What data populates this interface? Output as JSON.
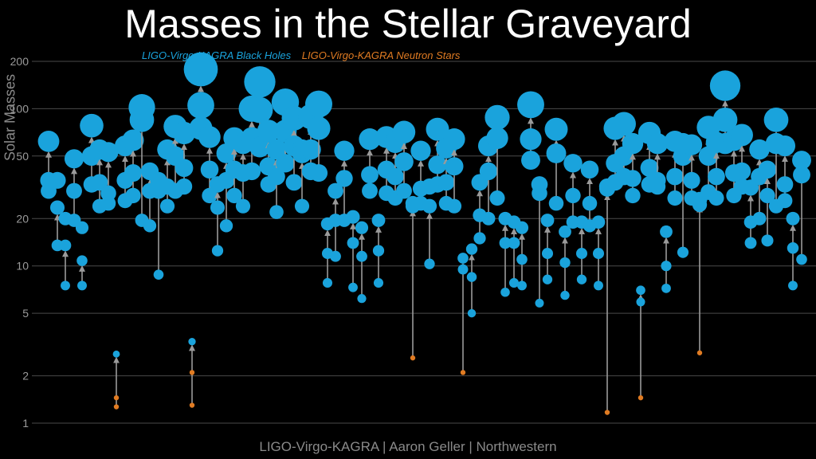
{
  "chart_data": {
    "type": "scatter",
    "title": "Masses in the Stellar Graveyard",
    "ylabel": "Solar Masses",
    "credit": "LIGO-Virgo-KAGRA | Aaron Geller | Northwestern",
    "yscale": "log",
    "ylim": [
      1,
      200
    ],
    "yticks": [
      1,
      2,
      5,
      10,
      20,
      50,
      100,
      200
    ],
    "ytick_labels": [
      "1",
      "2",
      "5",
      "10",
      "20",
      "50",
      "100",
      "200"
    ],
    "grid": true,
    "legend": {
      "placement": "top-left",
      "entries": [
        {
          "label": "LIGO-Virgo-KAGRA Black Holes",
          "color": "#1aa3dc"
        },
        {
          "label": "LIGO-Virgo-KAGRA Neutron Stars",
          "color": "#e07b22"
        }
      ]
    },
    "colors": {
      "black_hole": "#1aa3dc",
      "neutron_star": "#e07b22",
      "arrow": "#9a9a9a",
      "grid": "#4a4a4a"
    },
    "note": "Each merger: two components (m1, m2) with an arrow to the remnant mass (rem). Component kind: b = black hole, n = neutron star.",
    "events": [
      {
        "x": 61,
        "m1": 35,
        "m2": 30,
        "rem": 62,
        "k1": "b",
        "k2": "b"
      },
      {
        "x": 72,
        "m1": 35,
        "m2": 13.5,
        "rem": 23.5,
        "k1": "b",
        "k2": "b"
      },
      {
        "x": 82,
        "m1": 20,
        "m2": 7.5,
        "rem": 13.5,
        "k1": "b",
        "k2": "b"
      },
      {
        "x": 93,
        "m1": 30,
        "m2": 19.5,
        "rem": 48,
        "k1": "b",
        "k2": "b"
      },
      {
        "x": 103,
        "m1": 17.5,
        "m2": 7.5,
        "rem": 10.8,
        "k1": "b",
        "k2": "b"
      },
      {
        "x": 115,
        "m1": 50,
        "m2": 33,
        "rem": 78,
        "k1": "b",
        "k2": "b"
      },
      {
        "x": 125,
        "m1": 34,
        "m2": 24,
        "rem": 55,
        "k1": "b",
        "k2": "b"
      },
      {
        "x": 136,
        "m1": 29,
        "m2": 25,
        "rem": 53,
        "k1": "b",
        "k2": "b"
      },
      {
        "x": 146,
        "m1": 1.45,
        "m2": 1.27,
        "rem": 2.75,
        "k1": "n",
        "k2": "n"
      },
      {
        "x": 157,
        "m1": 35,
        "m2": 26,
        "rem": 58,
        "k1": "b",
        "k2": "b"
      },
      {
        "x": 167,
        "m1": 39,
        "m2": 28,
        "rem": 63,
        "k1": "b",
        "k2": "b"
      },
      {
        "x": 178,
        "m1": 85,
        "m2": 19.5,
        "rem": 102,
        "k1": "b",
        "k2": "b"
      },
      {
        "x": 188,
        "m1": 30,
        "m2": 18,
        "rem": 40,
        "k1": "b",
        "k2": "b"
      },
      {
        "x": 199,
        "m1": 30,
        "m2": 8.8,
        "rem": 35,
        "k1": "b",
        "k2": "b"
      },
      {
        "x": 210,
        "m1": 32,
        "m2": 24,
        "rem": 55,
        "k1": "b",
        "k2": "b"
      },
      {
        "x": 220,
        "m1": 50,
        "m2": 30,
        "rem": 77,
        "k1": "b",
        "k2": "b"
      },
      {
        "x": 231,
        "m1": 42,
        "m2": 32,
        "rem": 70,
        "k1": "b",
        "k2": "b"
      },
      {
        "x": 241,
        "m1": 2.1,
        "m2": 1.3,
        "rem": 3.3,
        "k1": "n",
        "k2": "n"
      },
      {
        "x": 252,
        "m1": 105,
        "m2": 75,
        "rem": 178,
        "k1": "b",
        "k2": "b"
      },
      {
        "x": 263,
        "m1": 41,
        "m2": 28,
        "rem": 66,
        "k1": "b",
        "k2": "b"
      },
      {
        "x": 273,
        "m1": 23.5,
        "m2": 12.5,
        "rem": 33,
        "k1": "b",
        "k2": "b"
      },
      {
        "x": 284,
        "m1": 35,
        "m2": 18,
        "rem": 52,
        "k1": "b",
        "k2": "b"
      },
      {
        "x": 294,
        "m1": 41,
        "m2": 28,
        "rem": 65,
        "k1": "b",
        "k2": "b"
      },
      {
        "x": 305,
        "m1": 39,
        "m2": 24,
        "rem": 60,
        "k1": "b",
        "k2": "b"
      },
      {
        "x": 316,
        "m1": 65,
        "m2": 40,
        "rem": 100,
        "k1": "b",
        "k2": "b"
      },
      {
        "x": 326,
        "m1": 98,
        "m2": 57,
        "rem": 148,
        "k1": "b",
        "k2": "b"
      },
      {
        "x": 337,
        "m1": 43,
        "m2": 33,
        "rem": 72,
        "k1": "b",
        "k2": "b"
      },
      {
        "x": 347,
        "m1": 37,
        "m2": 22,
        "rem": 55,
        "k1": "b",
        "k2": "b"
      },
      {
        "x": 358,
        "m1": 72,
        "m2": 45,
        "rem": 110,
        "k1": "b",
        "k2": "b"
      },
      {
        "x": 369,
        "m1": 58,
        "m2": 34,
        "rem": 87,
        "k1": "b",
        "k2": "b"
      },
      {
        "x": 379,
        "m1": 55,
        "m2": 24,
        "rem": 52,
        "k1": "b",
        "k2": "b"
      },
      {
        "x": 390,
        "m1": 55,
        "m2": 40,
        "rem": 89,
        "k1": "b",
        "k2": "b"
      },
      {
        "x": 400,
        "m1": 75,
        "m2": 39,
        "rem": 107,
        "k1": "b",
        "k2": "b"
      },
      {
        "x": 411,
        "m1": 12,
        "m2": 7.8,
        "rem": 18.5,
        "k1": "b",
        "k2": "b"
      },
      {
        "x": 421,
        "m1": 19.5,
        "m2": 11.5,
        "rem": 30,
        "k1": "b",
        "k2": "b"
      },
      {
        "x": 432,
        "m1": 36,
        "m2": 19.5,
        "rem": 54,
        "k1": "b",
        "k2": "b"
      },
      {
        "x": 443,
        "m1": 14,
        "m2": 7.3,
        "rem": 20.5,
        "k1": "b",
        "k2": "b"
      },
      {
        "x": 454,
        "m1": 11.5,
        "m2": 6.2,
        "rem": 17.5,
        "k1": "b",
        "k2": "b"
      },
      {
        "x": 464,
        "m1": 38,
        "m2": 30,
        "rem": 64,
        "k1": "b",
        "k2": "b"
      },
      {
        "x": 475,
        "m1": 12.5,
        "m2": 7.8,
        "rem": 19.5,
        "k1": "b",
        "k2": "b"
      },
      {
        "x": 485,
        "m1": 41,
        "m2": 29,
        "rem": 66,
        "k1": "b",
        "k2": "b"
      },
      {
        "x": 496,
        "m1": 37,
        "m2": 27,
        "rem": 61,
        "k1": "b",
        "k2": "b"
      },
      {
        "x": 507,
        "m1": 46,
        "m2": 30,
        "rem": 71,
        "k1": "b",
        "k2": "b"
      },
      {
        "x": 518,
        "m1": 24,
        "m2": 2.6,
        "rem": 25,
        "k1": "b",
        "k2": "n"
      },
      {
        "x": 528,
        "m1": 31,
        "m2": 25,
        "rem": 54,
        "k1": "b",
        "k2": "b"
      },
      {
        "x": 539,
        "m1": 32,
        "m2": 10.3,
        "rem": 24,
        "k1": "b",
        "k2": "b"
      },
      {
        "x": 549,
        "m1": 44,
        "m2": 33,
        "rem": 74,
        "k1": "b",
        "k2": "b"
      },
      {
        "x": 560,
        "m1": 34,
        "m2": 25,
        "rem": 56,
        "k1": "b",
        "k2": "b"
      },
      {
        "x": 570,
        "m1": 43,
        "m2": 24,
        "rem": 64,
        "k1": "b",
        "k2": "b"
      },
      {
        "x": 581,
        "m1": 9.5,
        "m2": 2.1,
        "rem": 11.2,
        "k1": "b",
        "k2": "n"
      },
      {
        "x": 592,
        "m1": 8.5,
        "m2": 5.0,
        "rem": 12.8,
        "k1": "b",
        "k2": "b"
      },
      {
        "x": 602,
        "m1": 21,
        "m2": 15,
        "rem": 34,
        "k1": "b",
        "k2": "b"
      },
      {
        "x": 613,
        "m1": 40,
        "m2": 20,
        "rem": 58,
        "k1": "b",
        "k2": "b"
      },
      {
        "x": 624,
        "m1": 65,
        "m2": 27,
        "rem": 88,
        "k1": "b",
        "k2": "b"
      },
      {
        "x": 634,
        "m1": 14,
        "m2": 6.8,
        "rem": 20,
        "k1": "b",
        "k2": "b"
      },
      {
        "x": 645,
        "m1": 14,
        "m2": 7.8,
        "rem": 19,
        "k1": "b",
        "k2": "b"
      },
      {
        "x": 655,
        "m1": 11,
        "m2": 7.5,
        "rem": 17.5,
        "k1": "b",
        "k2": "b"
      },
      {
        "x": 666,
        "m1": 64,
        "m2": 47,
        "rem": 106,
        "k1": "b",
        "k2": "b"
      },
      {
        "x": 677,
        "m1": 29,
        "m2": 5.8,
        "rem": 33,
        "k1": "b",
        "k2": "b"
      },
      {
        "x": 687,
        "m1": 12,
        "m2": 8.2,
        "rem": 19.5,
        "k1": "b",
        "k2": "b"
      },
      {
        "x": 698,
        "m1": 52,
        "m2": 25,
        "rem": 74,
        "k1": "b",
        "k2": "b"
      },
      {
        "x": 709,
        "m1": 10.5,
        "m2": 6.5,
        "rem": 16.5,
        "k1": "b",
        "k2": "b"
      },
      {
        "x": 719,
        "m1": 28,
        "m2": 19,
        "rem": 45,
        "k1": "b",
        "k2": "b"
      },
      {
        "x": 730,
        "m1": 12,
        "m2": 8.2,
        "rem": 19,
        "k1": "b",
        "k2": "b"
      },
      {
        "x": 740,
        "m1": 25,
        "m2": 18,
        "rem": 41,
        "k1": "b",
        "k2": "b"
      },
      {
        "x": 751,
        "m1": 12,
        "m2": 7.5,
        "rem": 19,
        "k1": "b",
        "k2": "b"
      },
      {
        "x": 762,
        "m1": 31,
        "m2": 1.17,
        "rem": 32,
        "k1": "b",
        "k2": "n"
      },
      {
        "x": 772,
        "m1": 45,
        "m2": 34,
        "rem": 75,
        "k1": "b",
        "k2": "b"
      },
      {
        "x": 783,
        "m1": 50,
        "m2": 37,
        "rem": 80,
        "k1": "b",
        "k2": "b"
      },
      {
        "x": 794,
        "m1": 36,
        "m2": 28,
        "rem": 60,
        "k1": "b",
        "k2": "b"
      },
      {
        "x": 804,
        "m1": 5.9,
        "m2": 1.45,
        "rem": 7.0,
        "k1": "b",
        "k2": "n"
      },
      {
        "x": 815,
        "m1": 42,
        "m2": 33,
        "rem": 70,
        "k1": "b",
        "k2": "b"
      },
      {
        "x": 825,
        "m1": 35,
        "m2": 32,
        "rem": 60,
        "k1": "b",
        "k2": "b"
      },
      {
        "x": 836,
        "m1": 10,
        "m2": 7.2,
        "rem": 16.5,
        "k1": "b",
        "k2": "b"
      },
      {
        "x": 847,
        "m1": 37,
        "m2": 27,
        "rem": 62,
        "k1": "b",
        "k2": "b"
      },
      {
        "x": 857,
        "m1": 50,
        "m2": 12.2,
        "rem": 60,
        "k1": "b",
        "k2": "b"
      },
      {
        "x": 868,
        "m1": 35,
        "m2": 27,
        "rem": 59,
        "k1": "b",
        "k2": "b"
      },
      {
        "x": 878,
        "m1": 24.5,
        "m2": 2.8,
        "rem": 26.5,
        "k1": "b",
        "k2": "n"
      },
      {
        "x": 889,
        "m1": 50,
        "m2": 29.5,
        "rem": 76,
        "k1": "b",
        "k2": "b"
      },
      {
        "x": 899,
        "m1": 37,
        "m2": 27,
        "rem": 61,
        "k1": "b",
        "k2": "b"
      },
      {
        "x": 910,
        "m1": 85,
        "m2": 60,
        "rem": 140,
        "k1": "b",
        "k2": "b"
      },
      {
        "x": 921,
        "m1": 39,
        "m2": 28,
        "rem": 63,
        "k1": "b",
        "k2": "b"
      },
      {
        "x": 931,
        "m1": 40,
        "m2": 32,
        "rem": 68,
        "k1": "b",
        "k2": "b"
      },
      {
        "x": 942,
        "m1": 19,
        "m2": 14,
        "rem": 31.5,
        "k1": "b",
        "k2": "b"
      },
      {
        "x": 953,
        "m1": 37,
        "m2": 20,
        "rem": 55,
        "k1": "b",
        "k2": "b"
      },
      {
        "x": 963,
        "m1": 28,
        "m2": 14.5,
        "rem": 41,
        "k1": "b",
        "k2": "b"
      },
      {
        "x": 974,
        "m1": 60,
        "m2": 24,
        "rem": 85,
        "k1": "b",
        "k2": "b"
      },
      {
        "x": 985,
        "m1": 33,
        "m2": 26,
        "rem": 58,
        "k1": "b",
        "k2": "b"
      },
      {
        "x": 995,
        "m1": 13,
        "m2": 7.5,
        "rem": 20,
        "k1": "b",
        "k2": "b"
      },
      {
        "x": 1006,
        "m1": 38,
        "m2": 11,
        "rem": 47,
        "k1": "b",
        "k2": "b"
      }
    ]
  }
}
